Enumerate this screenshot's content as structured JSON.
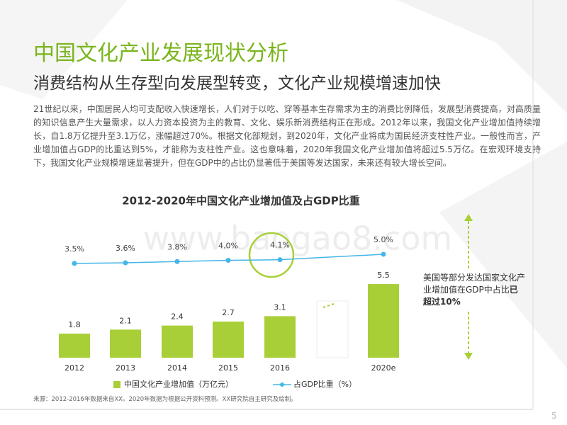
{
  "title": "中国文化产业发展现状分析",
  "subtitle": "消费结构从生存型向发展型转变，文化产业规模增速加快",
  "body": "21世纪以来，中国居民人均可支配收入快速增长，人们对于以吃、穿等基本生存需求为主的消费比例降低，发展型消费提高，对高质量的知识信息产生大量需求，以人力资本投资为主的教育、文化、娱乐新消费结构正在形成。2012年以来，我国文化产业增加值持续增长，自1.8万亿提升至3.1万亿，涨幅超过70%。根据文化部规划，到2020年，文化产业将成为国民经济支柱性产业。一般性而言，产业增加值占GDP的比重达到5%，才能称为支柱性产业。这也意味着，2020年我国文化产业增加值将超过5.5万亿。在宏观环境支持下，我国文化产业规模增速显著提升，但在GDP中的占比仍显著低于美国等发达国家，未来还有较大增长空间。",
  "watermark": "www.baogao8.com",
  "chart_data": {
    "type": "bar_line",
    "title": "2012-2020年中国文化产业增加值及占GDP比重",
    "categories": [
      "2012",
      "2013",
      "2014",
      "2015",
      "2016",
      "2020e"
    ],
    "series": [
      {
        "name": "中国文化产业增加值（万亿元）",
        "color": "#a8cf38",
        "values": [
          1.8,
          2.1,
          2.4,
          2.7,
          3.1,
          5.5
        ]
      },
      {
        "name": "占GDP比重（%）",
        "color": "#45b6e8",
        "axis": "y2",
        "values": [
          3.5,
          3.6,
          3.8,
          4.0,
          4.1,
          5.0
        ],
        "value_labels": [
          "3.5%",
          "3.6%",
          "3.8%",
          "4.0%",
          "4.1%",
          "5.0%"
        ]
      }
    ],
    "ylim": [
      0,
      10
    ],
    "y2lim": [
      -12,
      10
    ]
  },
  "annotation": {
    "text": "美国等部分发达国家文化产业增加值在GDP中占比",
    "emphasis": "已超过10%"
  },
  "source": "来源：2012-2016年数据来自XX。2020年数据为根据公开资料预测。XX研究院自主研究及绘制。",
  "page_number": "5"
}
